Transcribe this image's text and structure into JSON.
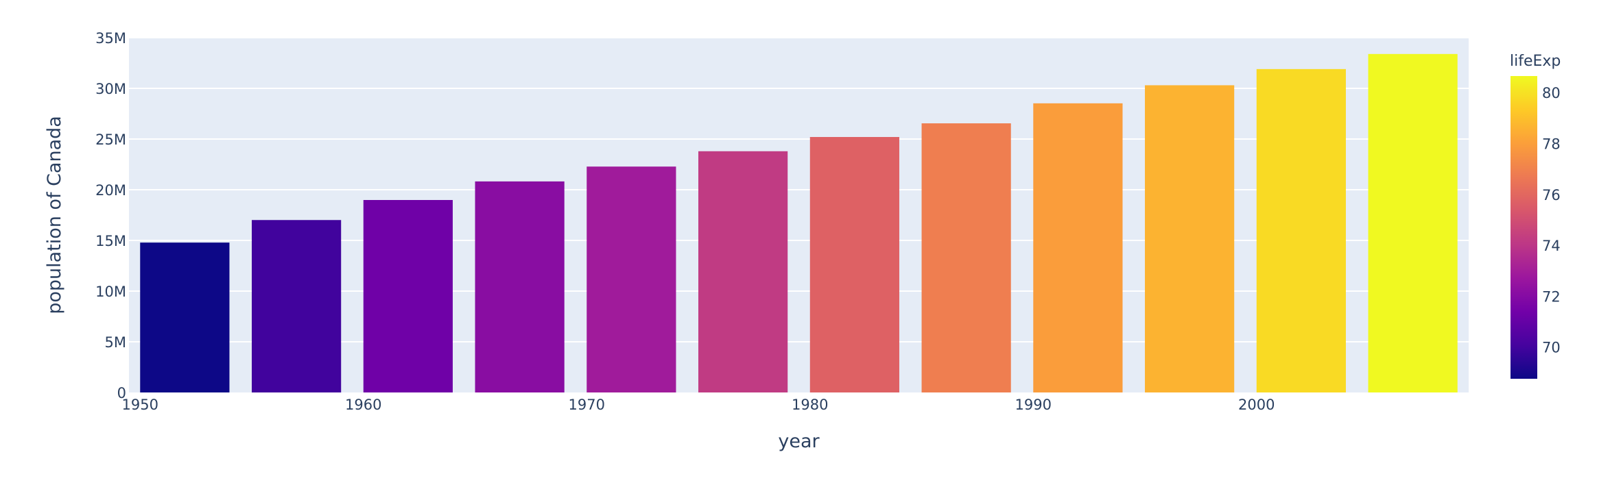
{
  "chart_data": {
    "type": "bar",
    "title": "",
    "xlabel": "year",
    "ylabel": "population of Canada",
    "x": [
      1952,
      1957,
      1962,
      1967,
      1972,
      1977,
      1982,
      1987,
      1992,
      1997,
      2002,
      2007
    ],
    "values": [
      14785584,
      17010154,
      18985849,
      20819767,
      22284500,
      23796400,
      25201900,
      26549700,
      28523502,
      30305843,
      31902268,
      33390141
    ],
    "color_values": [
      68.75,
      69.96,
      71.3,
      72.13,
      72.88,
      74.21,
      75.76,
      76.86,
      77.95,
      78.61,
      79.77,
      80.653
    ],
    "xlim": [
      1949.5,
      2009.5
    ],
    "ylim": [
      0,
      35000000
    ],
    "x_ticks": [
      1950,
      1960,
      1970,
      1980,
      1990,
      2000
    ],
    "x_tick_labels": [
      "1950",
      "1960",
      "1970",
      "1980",
      "1990",
      "2000"
    ],
    "y_ticks": [
      0,
      5000000,
      10000000,
      15000000,
      20000000,
      25000000,
      30000000,
      35000000
    ],
    "y_tick_labels": [
      "0",
      "5M",
      "10M",
      "15M",
      "20M",
      "25M",
      "30M",
      "35M"
    ],
    "grid": true,
    "legend": "none",
    "colorbar": {
      "title": "lifeExp",
      "range": [
        68.75,
        80.653
      ],
      "ticks": [
        70,
        72,
        74,
        76,
        78,
        80
      ],
      "tick_labels": [
        "70",
        "72",
        "74",
        "76",
        "78",
        "80"
      ],
      "placement": "right",
      "colorscale": [
        "#0d0887",
        "#46039f",
        "#7201a8",
        "#9c179e",
        "#bd3786",
        "#d8576b",
        "#ed7953",
        "#fb9f3a",
        "#fdca26",
        "#f0f921"
      ]
    },
    "colors": {
      "plot_bg": "#e5ecf6",
      "grid": "#ffffff",
      "text": "#2a3f5f"
    }
  }
}
